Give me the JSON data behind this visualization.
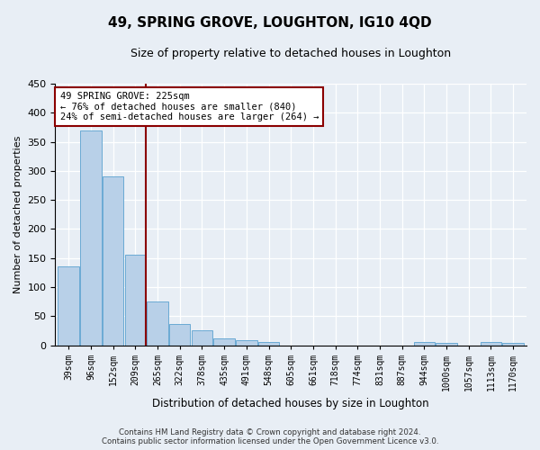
{
  "title": "49, SPRING GROVE, LOUGHTON, IG10 4QD",
  "subtitle": "Size of property relative to detached houses in Loughton",
  "xlabel": "Distribution of detached houses by size in Loughton",
  "ylabel": "Number of detached properties",
  "bar_labels": [
    "39sqm",
    "96sqm",
    "152sqm",
    "209sqm",
    "265sqm",
    "322sqm",
    "378sqm",
    "435sqm",
    "491sqm",
    "548sqm",
    "605sqm",
    "661sqm",
    "718sqm",
    "774sqm",
    "831sqm",
    "887sqm",
    "944sqm",
    "1000sqm",
    "1057sqm",
    "1113sqm",
    "1170sqm"
  ],
  "bar_values": [
    135,
    370,
    290,
    155,
    75,
    36,
    25,
    11,
    8,
    5,
    0,
    0,
    0,
    0,
    0,
    0,
    5,
    4,
    0,
    5,
    4
  ],
  "bar_color": "#b8d0e8",
  "bar_edge_color": "#6aaad4",
  "vline_x_index": 3,
  "vline_color": "#8B0000",
  "annotation_text": "49 SPRING GROVE: 225sqm\n← 76% of detached houses are smaller (840)\n24% of semi-detached houses are larger (264) →",
  "annotation_box_color": "#ffffff",
  "annotation_box_edge": "#8B0000",
  "ylim": [
    0,
    450
  ],
  "yticks": [
    0,
    50,
    100,
    150,
    200,
    250,
    300,
    350,
    400,
    450
  ],
  "footer1": "Contains HM Land Registry data © Crown copyright and database right 2024.",
  "footer2": "Contains public sector information licensed under the Open Government Licence v3.0.",
  "bg_color": "#e8eef5",
  "plot_bg_color": "#e8eef5",
  "grid_color": "#ffffff",
  "title_fontsize": 11,
  "subtitle_fontsize": 9
}
